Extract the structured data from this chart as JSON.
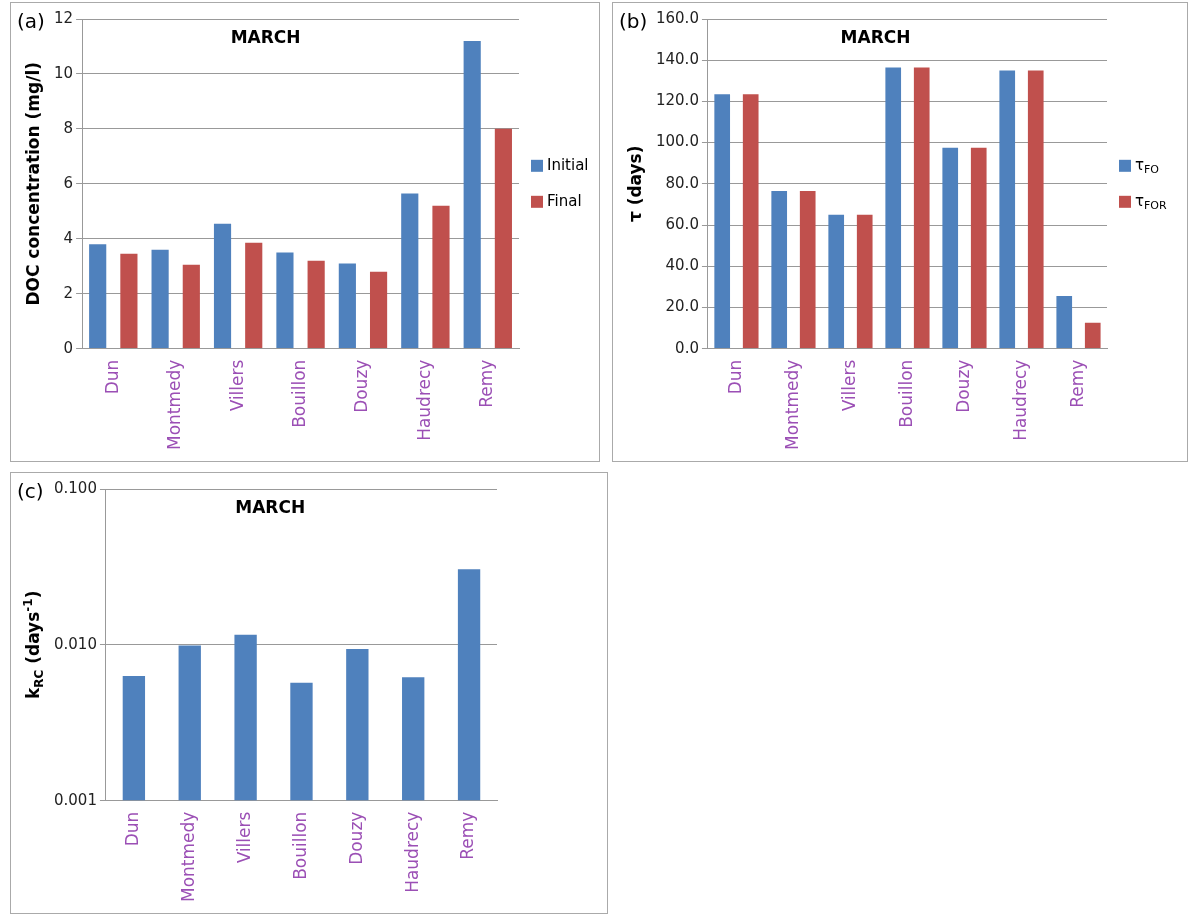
{
  "chart_data": [
    {
      "type": "bar",
      "title": "MARCH",
      "ylabel": "DOC concentration (mg/l)",
      "annotations": [
        "(a)"
      ],
      "categories": [
        "Dun",
        "Montmedy",
        "Villers",
        "Bouillon",
        "Douzy",
        "Haudrecy",
        "Remy"
      ],
      "series": [
        {
          "name": "Initial",
          "color": "#4f81bd",
          "values": [
            3.8,
            3.6,
            4.55,
            3.5,
            3.1,
            5.65,
            11.2
          ]
        },
        {
          "name": "Final",
          "color": "#c0504d",
          "values": [
            3.45,
            3.05,
            3.85,
            3.2,
            2.8,
            5.2,
            8.0
          ]
        }
      ],
      "ylim": [
        0,
        12
      ],
      "yticks": [
        0,
        2,
        4,
        6,
        8,
        10,
        12
      ],
      "grid": "y",
      "legend": "right"
    },
    {
      "type": "bar",
      "title": "MARCH",
      "ylabel": "τ (days)",
      "annotations": [
        "(b)"
      ],
      "categories": [
        "Dun",
        "Montmedy",
        "Villers",
        "Bouillon",
        "Douzy",
        "Haudrecy",
        "Remy"
      ],
      "series": [
        {
          "name": "τ$_{FO}$",
          "color": "#4f81bd",
          "values": [
            123.5,
            76.5,
            65,
            136.5,
            97.5,
            135,
            25.5
          ]
        },
        {
          "name": "τ$_{FOR}$",
          "color": "#c0504d",
          "values": [
            123.5,
            76.5,
            65,
            136.5,
            97.5,
            135,
            12.5
          ]
        }
      ],
      "ylim": [
        0,
        160
      ],
      "yticks": [
        {
          "value": 0,
          "label": "0.0"
        },
        {
          "value": 20,
          "label": "20.0"
        },
        {
          "value": 40,
          "label": "40.0"
        },
        {
          "value": 60,
          "label": "60.0"
        },
        {
          "value": 80,
          "label": "80.0"
        },
        {
          "value": 100,
          "label": "100.0"
        },
        {
          "value": 120,
          "label": "120.0"
        },
        {
          "value": 140,
          "label": "140.0"
        },
        {
          "value": 160,
          "label": "160.0"
        }
      ],
      "grid": "y",
      "legend": "right"
    },
    {
      "type": "bar",
      "title": "MARCH",
      "ylabel": "k$_{RC}$ (days$^{-1}$)",
      "annotations": [
        "(c)"
      ],
      "categories": [
        "Dun",
        "Montmedy",
        "Villers",
        "Bouillon",
        "Douzy",
        "Haudrecy",
        "Remy"
      ],
      "values": [
        0.0063,
        0.0099,
        0.0116,
        0.0057,
        0.0094,
        0.0062,
        0.0306
      ],
      "color": "#4f81bd",
      "ylim": [
        0.001,
        0.1
      ],
      "yticks": [
        {
          "value": 0.001,
          "label": "0.001"
        },
        {
          "value": 0.01,
          "label": "0.010"
        },
        {
          "value": 0.1,
          "label": "0.100"
        }
      ],
      "log": true,
      "grid": "y"
    }
  ]
}
